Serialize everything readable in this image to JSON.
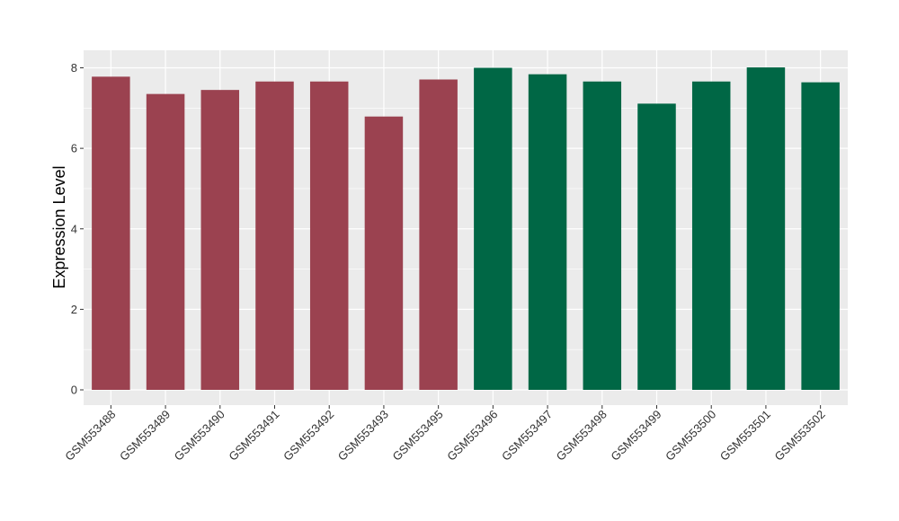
{
  "chart_data": {
    "type": "bar",
    "ylabel": "Expression Level",
    "xlabel": "",
    "ylim": [
      0,
      8.4
    ],
    "yticks": [
      0,
      2,
      4,
      6,
      8
    ],
    "grid": true,
    "categories": [
      "GSM553488",
      "GSM553489",
      "GSM553490",
      "GSM553491",
      "GSM553492",
      "GSM553493",
      "GSM553495",
      "GSM553496",
      "GSM553497",
      "GSM553498",
      "GSM553499",
      "GSM553500",
      "GSM553501",
      "GSM553502"
    ],
    "values": [
      7.78,
      7.35,
      7.45,
      7.66,
      7.66,
      6.79,
      7.71,
      8.0,
      7.84,
      7.66,
      7.11,
      7.66,
      8.01,
      7.64
    ],
    "group_colors": [
      "#9b4250",
      "#9b4250",
      "#9b4250",
      "#9b4250",
      "#9b4250",
      "#9b4250",
      "#9b4250",
      "#006745",
      "#006745",
      "#006745",
      "#006745",
      "#006745",
      "#006745",
      "#006745"
    ],
    "panel_background": "#ebebeb",
    "gridline_color": "#ffffff"
  }
}
